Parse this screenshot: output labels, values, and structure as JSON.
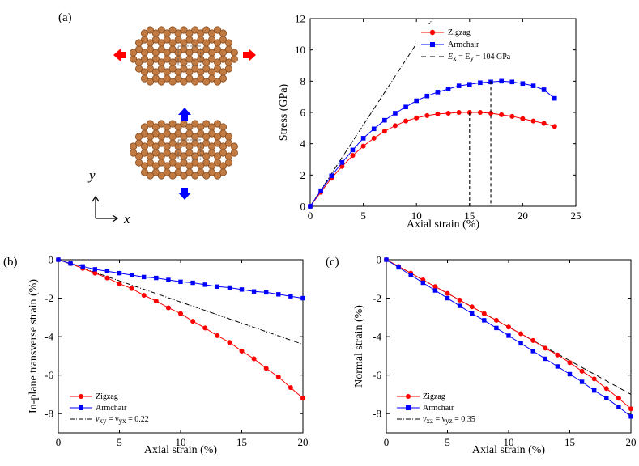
{
  "panels": {
    "a": "(a)",
    "b": "(b)",
    "c": "(c)"
  },
  "axis_labels": {
    "x": "x",
    "y": "y"
  },
  "colors": {
    "zigzag": "#ff0000",
    "armchair": "#0000ff",
    "atom": "#c07a42",
    "bond": "#b8753f",
    "arrow_x": "#ff0000",
    "arrow_y": "#0000ff"
  },
  "chart_data": [
    {
      "id": "a",
      "type": "line",
      "xlabel": "Axial strain (%)",
      "ylabel": "Stress (GPa)",
      "xlim": [
        0,
        25
      ],
      "ylim": [
        0,
        12
      ],
      "xticks": [
        "0",
        "5",
        "10",
        "15",
        "20",
        "25"
      ],
      "yticks": [
        "0",
        "2",
        "4",
        "6",
        "8",
        "10",
        "12"
      ],
      "series": [
        {
          "name": "Zigzag",
          "x": [
            0,
            1,
            2,
            3,
            4,
            5,
            6,
            7,
            8,
            9,
            10,
            11,
            12,
            13,
            14,
            15,
            16,
            17,
            18,
            19,
            20,
            21,
            22,
            23
          ],
          "values": [
            0,
            0.9,
            1.8,
            2.55,
            3.25,
            3.85,
            4.35,
            4.8,
            5.15,
            5.45,
            5.65,
            5.8,
            5.9,
            5.95,
            6.0,
            6.0,
            6.0,
            5.95,
            5.85,
            5.75,
            5.6,
            5.45,
            5.3,
            5.1
          ]
        },
        {
          "name": "Armchair",
          "x": [
            0,
            1,
            2,
            3,
            4,
            5,
            6,
            7,
            8,
            9,
            10,
            11,
            12,
            13,
            14,
            15,
            16,
            17,
            18,
            19,
            20,
            21,
            22,
            23
          ],
          "values": [
            0,
            1.0,
            1.95,
            2.8,
            3.6,
            4.35,
            4.95,
            5.5,
            5.95,
            6.35,
            6.75,
            7.05,
            7.3,
            7.5,
            7.7,
            7.8,
            7.9,
            7.95,
            8.0,
            7.95,
            7.85,
            7.7,
            7.45,
            6.9
          ]
        },
        {
          "name": "E_x = E_y = 104 GPa",
          "x": [
            0,
            11.54
          ],
          "values": [
            0,
            12
          ]
        }
      ],
      "legend": {
        "labels": [
          "Zigzag",
          "Armchair",
          "E",
          "x",
          " = E",
          "y",
          " = 104 GPa"
        ],
        "position": "top-right"
      },
      "annotations": [
        {
          "x": 15,
          "y": 6.0
        },
        {
          "x": 17,
          "y": 8.0
        }
      ]
    },
    {
      "id": "b",
      "type": "line",
      "xlabel": "Axial strain (%)",
      "ylabel": "In-plane transverse strain (%)",
      "xlim": [
        0,
        20
      ],
      "ylim": [
        -9,
        0
      ],
      "xticks": [
        "0",
        "5",
        "10",
        "15",
        "20"
      ],
      "yticks": [
        "0",
        "-2",
        "-4",
        "-6",
        "-8"
      ],
      "series": [
        {
          "name": "Zigzag",
          "x": [
            0,
            1,
            2,
            3,
            4,
            5,
            6,
            7,
            8,
            9,
            10,
            11,
            12,
            13,
            14,
            15,
            16,
            17,
            18,
            19,
            20
          ],
          "values": [
            0,
            -0.2,
            -0.45,
            -0.7,
            -0.95,
            -1.25,
            -1.5,
            -1.85,
            -2.15,
            -2.5,
            -2.8,
            -3.2,
            -3.55,
            -3.95,
            -4.3,
            -4.75,
            -5.15,
            -5.65,
            -6.1,
            -6.65,
            -7.2
          ]
        },
        {
          "name": "Armchair",
          "x": [
            0,
            1,
            2,
            3,
            4,
            5,
            6,
            7,
            8,
            9,
            10,
            11,
            12,
            13,
            14,
            15,
            16,
            17,
            18,
            19,
            20
          ],
          "values": [
            0,
            -0.2,
            -0.35,
            -0.5,
            -0.6,
            -0.7,
            -0.8,
            -0.9,
            -0.95,
            -1.05,
            -1.15,
            -1.2,
            -1.3,
            -1.4,
            -1.45,
            -1.55,
            -1.65,
            -1.7,
            -1.8,
            -1.9,
            -2.0
          ]
        },
        {
          "name": "nu_xy = nu_yx = 0.22",
          "x": [
            0,
            20
          ],
          "values": [
            0,
            -4.4
          ]
        }
      ],
      "legend": {
        "labels": [
          "Zigzag",
          "Armchair",
          "ν",
          "xy",
          " = ν",
          "yx",
          " = 0.22"
        ],
        "position": "bottom-left"
      }
    },
    {
      "id": "c",
      "type": "line",
      "xlabel": "Axial strain (%)",
      "ylabel": "Normal strain (%)",
      "xlim": [
        0,
        20
      ],
      "ylim": [
        -9,
        0
      ],
      "xticks": [
        "0",
        "5",
        "10",
        "15",
        "20"
      ],
      "yticks": [
        "0",
        "-2",
        "-4",
        "-6",
        "-8"
      ],
      "series": [
        {
          "name": "Zigzag",
          "x": [
            0,
            1,
            2,
            3,
            4,
            5,
            6,
            7,
            8,
            9,
            10,
            11,
            12,
            13,
            14,
            15,
            16,
            17,
            18,
            19,
            20
          ],
          "values": [
            0,
            -0.35,
            -0.7,
            -1.05,
            -1.4,
            -1.75,
            -2.1,
            -2.45,
            -2.8,
            -3.15,
            -3.5,
            -3.85,
            -4.2,
            -4.6,
            -4.95,
            -5.35,
            -5.8,
            -6.2,
            -6.7,
            -7.2,
            -7.75
          ]
        },
        {
          "name": "Armchair",
          "x": [
            0,
            1,
            2,
            3,
            4,
            5,
            6,
            7,
            8,
            9,
            10,
            11,
            12,
            13,
            14,
            15,
            16,
            17,
            18,
            19,
            20
          ],
          "values": [
            0,
            -0.4,
            -0.8,
            -1.2,
            -1.6,
            -2.0,
            -2.4,
            -2.8,
            -3.15,
            -3.55,
            -3.95,
            -4.35,
            -4.75,
            -5.15,
            -5.55,
            -5.95,
            -6.35,
            -6.8,
            -7.2,
            -7.65,
            -8.15
          ]
        },
        {
          "name": "nu_xz = nu_yz = 0.35",
          "x": [
            0,
            20
          ],
          "values": [
            0,
            -7.0
          ]
        }
      ],
      "legend": {
        "labels": [
          "Zigzag",
          "Armchair",
          "ν",
          "xz",
          " = ν",
          "yz",
          " = 0.35"
        ],
        "position": "bottom-left"
      }
    }
  ]
}
